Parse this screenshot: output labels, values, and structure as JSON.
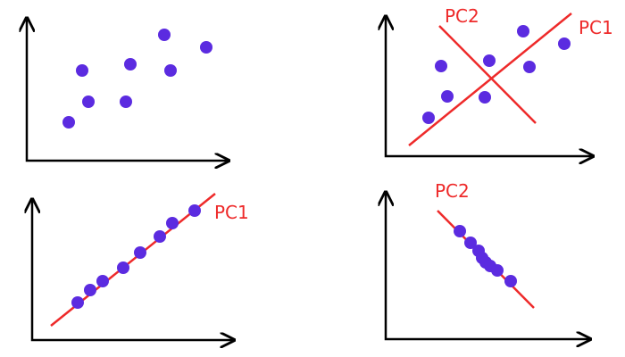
{
  "colors": {
    "axis": "#000000",
    "point": "#5b2be0",
    "line": "#ee2a2a",
    "background": "#ffffff"
  },
  "labels": {
    "pc1": "PC1",
    "pc2": "PC2"
  },
  "panels": [
    {
      "id": "original-data",
      "points": [
        [
          77,
          137
        ],
        [
          92,
          79
        ],
        [
          99,
          114
        ],
        [
          141,
          114
        ],
        [
          146,
          72
        ],
        [
          184,
          39
        ],
        [
          191,
          79
        ],
        [
          231,
          53
        ]
      ]
    },
    {
      "id": "principal-components",
      "points": [
        [
          480,
          132
        ],
        [
          494,
          74
        ],
        [
          501,
          108
        ],
        [
          543,
          109
        ],
        [
          548,
          68
        ],
        [
          586,
          35
        ],
        [
          593,
          75
        ],
        [
          632,
          49
        ]
      ]
    },
    {
      "id": "projection-pc1",
      "points": [
        [
          87,
          339
        ],
        [
          101,
          325
        ],
        [
          115,
          315
        ],
        [
          138,
          300
        ],
        [
          157,
          283
        ],
        [
          179,
          265
        ],
        [
          193,
          250
        ],
        [
          218,
          236
        ]
      ]
    },
    {
      "id": "projection-pc2",
      "points": [
        [
          515,
          259
        ],
        [
          527,
          272
        ],
        [
          536,
          281
        ],
        [
          540,
          289
        ],
        [
          544,
          294
        ],
        [
          549,
          298
        ],
        [
          557,
          303
        ],
        [
          572,
          315
        ]
      ]
    }
  ]
}
